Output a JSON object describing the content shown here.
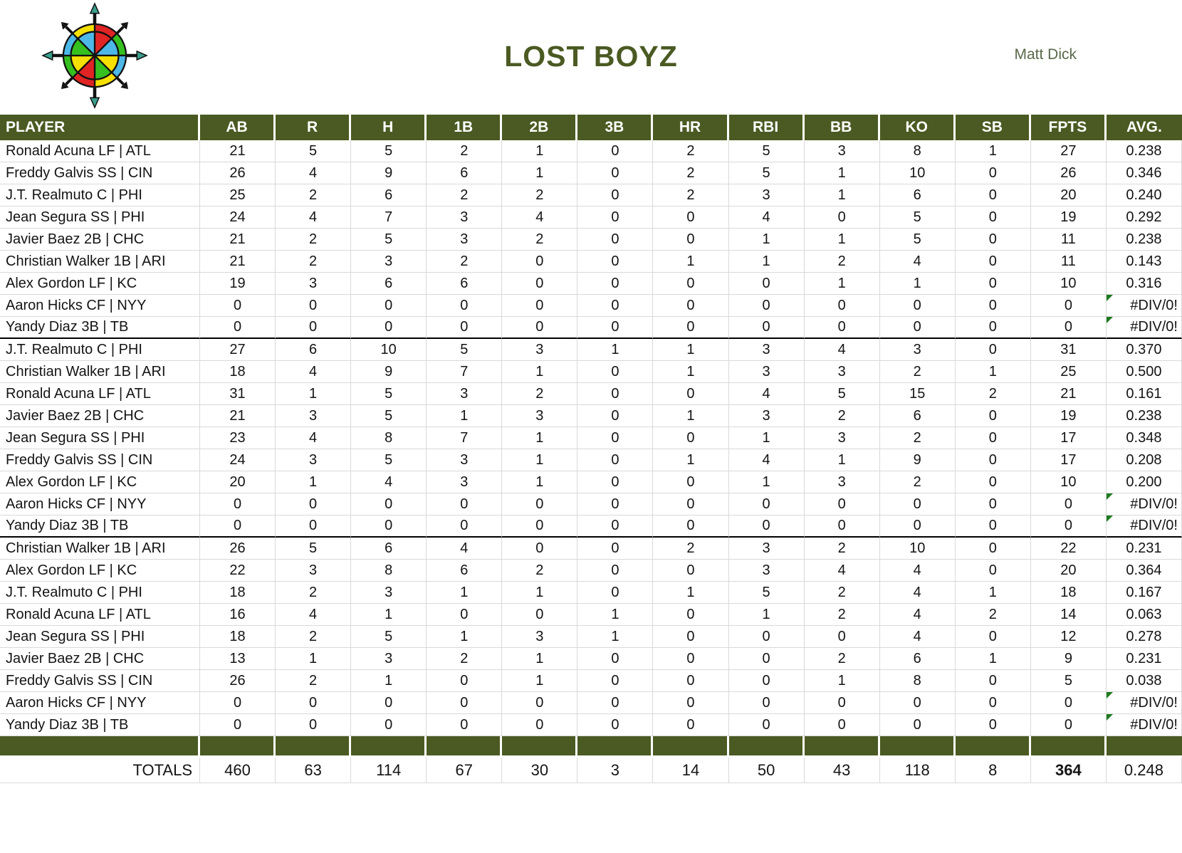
{
  "header": {
    "title": "LOST BOYZ",
    "owner": "Matt Dick",
    "logo_icon": "compass-rose-icon"
  },
  "colors": {
    "accent_green": "#4a5a22",
    "grid_line": "#d9d9d9",
    "error_flag_green": "#1e7a1e",
    "section_divider": "#000000"
  },
  "table": {
    "columns": [
      "PLAYER",
      "AB",
      "R",
      "H",
      "1B",
      "2B",
      "3B",
      "HR",
      "RBI",
      "BB",
      "KO",
      "SB",
      "FPTS",
      "AVG."
    ],
    "error_value": "#DIV/0!",
    "sections": [
      {
        "rows": [
          [
            "Ronald Acuna LF | ATL",
            "21",
            "5",
            "5",
            "2",
            "1",
            "0",
            "2",
            "5",
            "3",
            "8",
            "1",
            "27",
            "0.238"
          ],
          [
            "Freddy Galvis SS | CIN",
            "26",
            "4",
            "9",
            "6",
            "1",
            "0",
            "2",
            "5",
            "1",
            "10",
            "0",
            "26",
            "0.346"
          ],
          [
            "J.T. Realmuto C | PHI",
            "25",
            "2",
            "6",
            "2",
            "2",
            "0",
            "2",
            "3",
            "1",
            "6",
            "0",
            "20",
            "0.240"
          ],
          [
            "Jean Segura SS | PHI",
            "24",
            "4",
            "7",
            "3",
            "4",
            "0",
            "0",
            "4",
            "0",
            "5",
            "0",
            "19",
            "0.292"
          ],
          [
            "Javier Baez 2B | CHC",
            "21",
            "2",
            "5",
            "3",
            "2",
            "0",
            "0",
            "1",
            "1",
            "5",
            "0",
            "11",
            "0.238"
          ],
          [
            "Christian Walker 1B | ARI",
            "21",
            "2",
            "3",
            "2",
            "0",
            "0",
            "1",
            "1",
            "2",
            "4",
            "0",
            "11",
            "0.143"
          ],
          [
            "Alex Gordon LF | KC",
            "19",
            "3",
            "6",
            "6",
            "0",
            "0",
            "0",
            "0",
            "1",
            "1",
            "0",
            "10",
            "0.316"
          ],
          [
            "Aaron Hicks CF | NYY",
            "0",
            "0",
            "0",
            "0",
            "0",
            "0",
            "0",
            "0",
            "0",
            "0",
            "0",
            "0",
            "#DIV/0!"
          ],
          [
            "Yandy Diaz 3B | TB",
            "0",
            "0",
            "0",
            "0",
            "0",
            "0",
            "0",
            "0",
            "0",
            "0",
            "0",
            "0",
            "#DIV/0!"
          ]
        ]
      },
      {
        "rows": [
          [
            "J.T. Realmuto C | PHI",
            "27",
            "6",
            "10",
            "5",
            "3",
            "1",
            "1",
            "3",
            "4",
            "3",
            "0",
            "31",
            "0.370"
          ],
          [
            "Christian Walker 1B | ARI",
            "18",
            "4",
            "9",
            "7",
            "1",
            "0",
            "1",
            "3",
            "3",
            "2",
            "1",
            "25",
            "0.500"
          ],
          [
            "Ronald Acuna LF | ATL",
            "31",
            "1",
            "5",
            "3",
            "2",
            "0",
            "0",
            "4",
            "5",
            "15",
            "2",
            "21",
            "0.161"
          ],
          [
            "Javier Baez 2B | CHC",
            "21",
            "3",
            "5",
            "1",
            "3",
            "0",
            "1",
            "3",
            "2",
            "6",
            "0",
            "19",
            "0.238"
          ],
          [
            "Jean Segura SS | PHI",
            "23",
            "4",
            "8",
            "7",
            "1",
            "0",
            "0",
            "1",
            "3",
            "2",
            "0",
            "17",
            "0.348"
          ],
          [
            "Freddy Galvis SS | CIN",
            "24",
            "3",
            "5",
            "3",
            "1",
            "0",
            "1",
            "4",
            "1",
            "9",
            "0",
            "17",
            "0.208"
          ],
          [
            "Alex Gordon LF | KC",
            "20",
            "1",
            "4",
            "3",
            "1",
            "0",
            "0",
            "1",
            "3",
            "2",
            "0",
            "10",
            "0.200"
          ],
          [
            "Aaron Hicks CF | NYY",
            "0",
            "0",
            "0",
            "0",
            "0",
            "0",
            "0",
            "0",
            "0",
            "0",
            "0",
            "0",
            "#DIV/0!"
          ],
          [
            "Yandy Diaz 3B | TB",
            "0",
            "0",
            "0",
            "0",
            "0",
            "0",
            "0",
            "0",
            "0",
            "0",
            "0",
            "0",
            "#DIV/0!"
          ]
        ]
      },
      {
        "rows": [
          [
            "Christian Walker 1B | ARI",
            "26",
            "5",
            "6",
            "4",
            "0",
            "0",
            "2",
            "3",
            "2",
            "10",
            "0",
            "22",
            "0.231"
          ],
          [
            "Alex Gordon LF | KC",
            "22",
            "3",
            "8",
            "6",
            "2",
            "0",
            "0",
            "3",
            "4",
            "4",
            "0",
            "20",
            "0.364"
          ],
          [
            "J.T. Realmuto C | PHI",
            "18",
            "2",
            "3",
            "1",
            "1",
            "0",
            "1",
            "5",
            "2",
            "4",
            "1",
            "18",
            "0.167"
          ],
          [
            "Ronald Acuna LF | ATL",
            "16",
            "4",
            "1",
            "0",
            "0",
            "1",
            "0",
            "1",
            "2",
            "4",
            "2",
            "14",
            "0.063"
          ],
          [
            "Jean Segura SS | PHI",
            "18",
            "2",
            "5",
            "1",
            "3",
            "1",
            "0",
            "0",
            "0",
            "4",
            "0",
            "12",
            "0.278"
          ],
          [
            "Javier Baez 2B | CHC",
            "13",
            "1",
            "3",
            "2",
            "1",
            "0",
            "0",
            "0",
            "2",
            "6",
            "1",
            "9",
            "0.231"
          ],
          [
            "Freddy Galvis SS | CIN",
            "26",
            "2",
            "1",
            "0",
            "1",
            "0",
            "0",
            "0",
            "1",
            "8",
            "0",
            "5",
            "0.038"
          ],
          [
            "Aaron Hicks CF | NYY",
            "0",
            "0",
            "0",
            "0",
            "0",
            "0",
            "0",
            "0",
            "0",
            "0",
            "0",
            "0",
            "#DIV/0!"
          ],
          [
            "Yandy Diaz 3B | TB",
            "0",
            "0",
            "0",
            "0",
            "0",
            "0",
            "0",
            "0",
            "0",
            "0",
            "0",
            "0",
            "#DIV/0!"
          ]
        ]
      }
    ],
    "totals_label": "TOTALS",
    "totals": [
      "460",
      "63",
      "114",
      "67",
      "30",
      "3",
      "14",
      "50",
      "43",
      "118",
      "8",
      "364",
      "0.248"
    ],
    "totals_bold_column": "FPTS"
  }
}
